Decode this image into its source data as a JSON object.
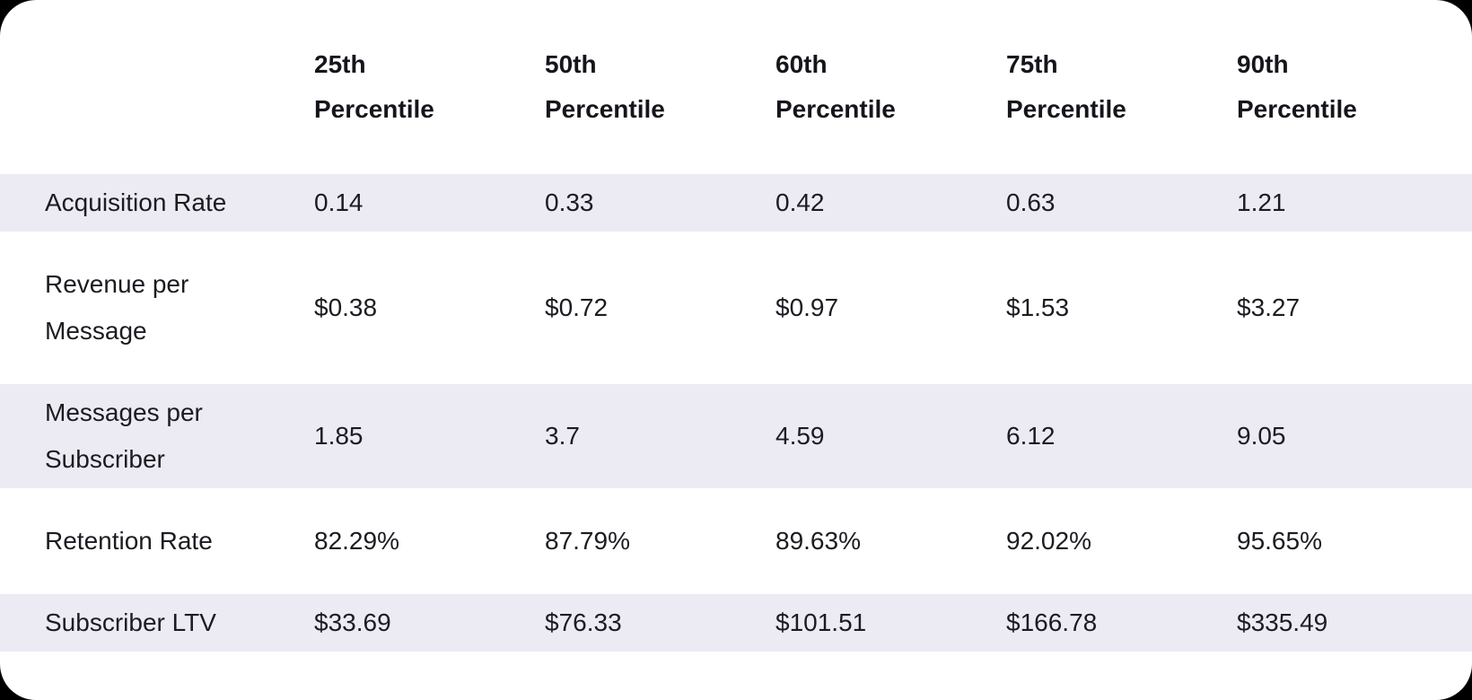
{
  "page": {
    "background_color": "#000000",
    "card_background_color": "#ffffff",
    "stripe_color": "#ECEBF4",
    "header_text_color": "#15161b",
    "body_text_color": "#1b1c21"
  },
  "table": {
    "headers": [
      "25th Percentile",
      "50th Percentile",
      "60th Percentile",
      "75th Percentile",
      "90th Percentile"
    ],
    "rows": [
      {
        "label": "Acquisition Rate",
        "values": [
          "0.14",
          "0.33",
          "0.42",
          "0.63",
          "1.21"
        ]
      },
      {
        "label": "Revenue per Message",
        "values": [
          "$0.38",
          "$0.72",
          "$0.97",
          "$1.53",
          "$3.27"
        ]
      },
      {
        "label": "Messages per Subscriber",
        "values": [
          "1.85",
          "3.7",
          "4.59",
          "6.12",
          "9.05"
        ]
      },
      {
        "label": "Retention Rate",
        "values": [
          "82.29%",
          "87.79%",
          "89.63%",
          "92.02%",
          "95.65%"
        ]
      },
      {
        "label": "Subscriber LTV",
        "values": [
          "$33.69",
          "$76.33",
          "$101.51",
          "$166.78",
          "$335.49"
        ]
      }
    ]
  },
  "chart_data": {
    "type": "table",
    "columns": [
      "",
      "25th Percentile",
      "50th Percentile",
      "60th Percentile",
      "75th Percentile",
      "90th Percentile"
    ],
    "rows": [
      {
        "label": "Acquisition Rate",
        "values": [
          0.14,
          0.33,
          0.42,
          0.63,
          1.21
        ],
        "format": "number"
      },
      {
        "label": "Revenue per Message",
        "values": [
          0.38,
          0.72,
          0.97,
          1.53,
          3.27
        ],
        "format": "usd"
      },
      {
        "label": "Messages per Subscriber",
        "values": [
          1.85,
          3.7,
          4.59,
          6.12,
          9.05
        ],
        "format": "number"
      },
      {
        "label": "Retention Rate",
        "values": [
          82.29,
          87.79,
          89.63,
          92.02,
          95.65
        ],
        "format": "percent"
      },
      {
        "label": "Subscriber LTV",
        "values": [
          33.69,
          76.33,
          101.51,
          166.78,
          335.49
        ],
        "format": "usd"
      }
    ],
    "title": "",
    "layout": "striped rows (odd rows shaded lavender), no gridlines, header row bold with two-line wrapped labels"
  }
}
